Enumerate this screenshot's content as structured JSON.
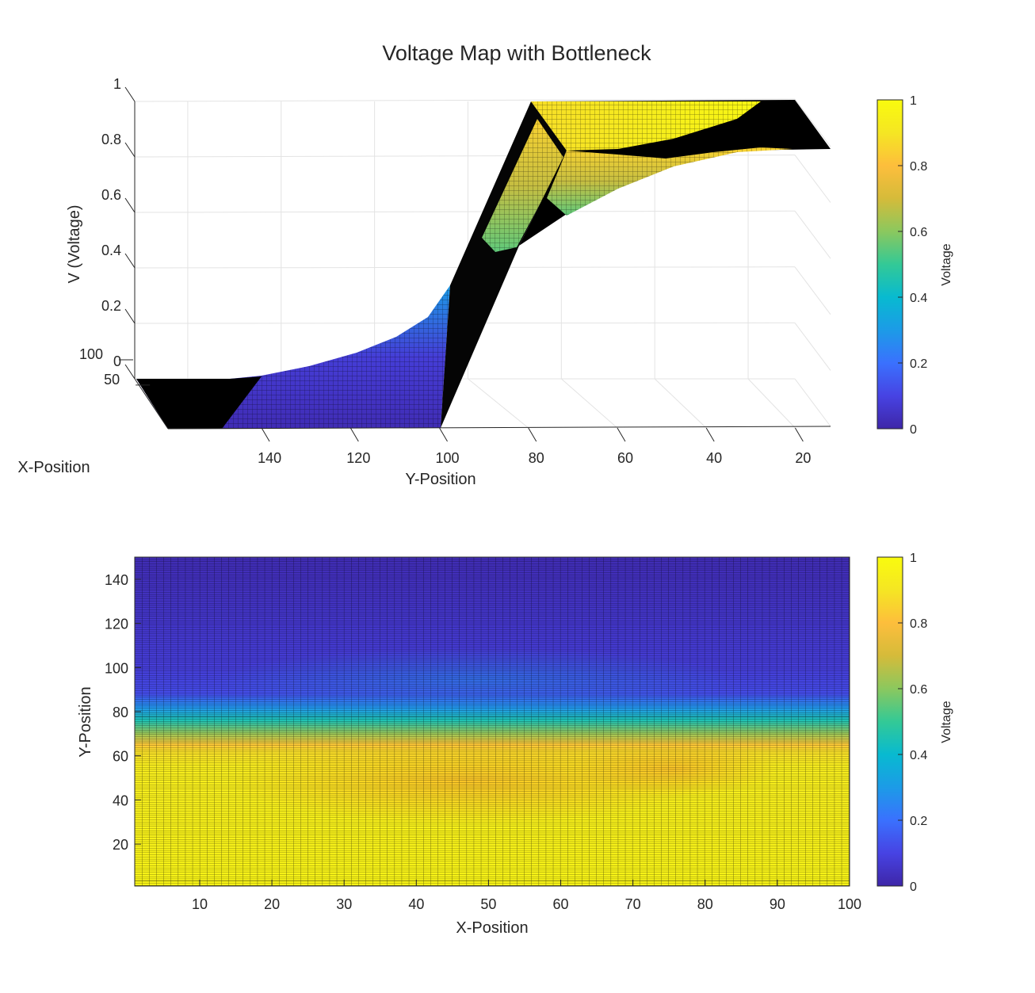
{
  "colors": {
    "parula": [
      "#3e26a8",
      "#4743e3",
      "#3a71fe",
      "#1c9be7",
      "#08bad0",
      "#33c996",
      "#8bc85e",
      "#d5bb3a",
      "#fdbe3c",
      "#f5e623",
      "#f9fb0e"
    ],
    "grid": "#e3e3e3",
    "axis": "#262626",
    "mesh_edge": "#000000"
  },
  "chart_data": [
    {
      "type": "surface",
      "title": "Voltage Map with Bottleneck",
      "xlabel": "X-Position",
      "ylabel": "Y-Position",
      "zlabel": "V (Voltage)",
      "x_ticks": [
        50,
        100
      ],
      "y_ticks": [
        140,
        120,
        100,
        80,
        60,
        40,
        20
      ],
      "z_ticks": [
        0,
        0.2,
        0.4,
        0.6,
        0.8,
        1
      ],
      "xlim": [
        1,
        100
      ],
      "ylim": [
        1,
        150
      ],
      "zlim": [
        0,
        1
      ],
      "grid": true,
      "surface": {
        "high_region_y": [
          1,
          65
        ],
        "transition_y": [
          65,
          90
        ],
        "low_region_y": [
          90,
          150
        ],
        "high_value": 1,
        "low_value": 0,
        "bottleneck_x": [
          25,
          75
        ],
        "bottleneck_min_value": 0.8,
        "bottleneck_max_low_value": 0.2
      },
      "colorbar": {
        "label": "Voltage",
        "ticks": [
          0,
          0.2,
          0.4,
          0.6,
          0.8,
          1
        ],
        "range": [
          0,
          1
        ]
      }
    },
    {
      "type": "heatmap",
      "xlabel": "X-Position",
      "ylabel": "Y-Position",
      "x_ticks": [
        10,
        20,
        30,
        40,
        50,
        60,
        70,
        80,
        90,
        100
      ],
      "y_ticks": [
        20,
        40,
        60,
        80,
        100,
        120,
        140
      ],
      "xlim": [
        1,
        100
      ],
      "ylim": [
        1,
        150
      ],
      "grid": "mesh",
      "colorbar": {
        "label": "Voltage",
        "ticks": [
          0,
          0.2,
          0.4,
          0.6,
          0.8,
          1
        ],
        "range": [
          0,
          1
        ]
      }
    }
  ]
}
